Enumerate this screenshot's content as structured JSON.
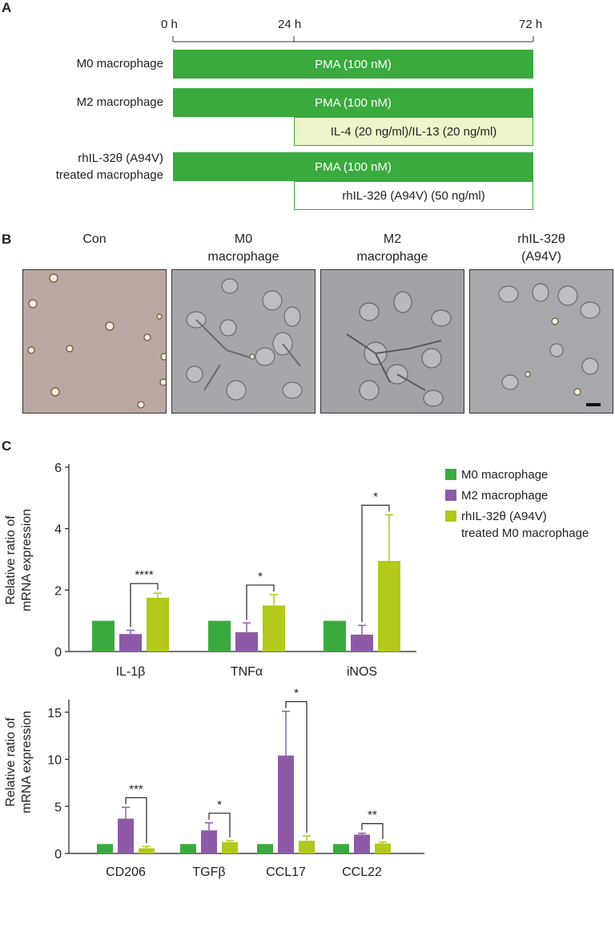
{
  "panels": {
    "a": "A",
    "b": "B",
    "c": "C"
  },
  "timeline": {
    "ticks": [
      "0 h",
      "24 h",
      "72 h"
    ],
    "rows": [
      {
        "label": "M0 macrophage",
        "bars": [
          "PMA (100 nM)"
        ]
      },
      {
        "label": "M2 macrophage",
        "bars": [
          "PMA (100 nM)",
          "IL-4 (20 ng/ml)/IL-13 (20 ng/ml)"
        ]
      },
      {
        "label_line1": "rhIL-32θ (A94V)",
        "label_line2": "treated macrophage",
        "bars": [
          "PMA (100 nM)",
          "rhIL-32θ (A94V) (50 ng/ml)"
        ]
      }
    ]
  },
  "micrographs": [
    {
      "title1": "",
      "title2": "Con"
    },
    {
      "title1": "M0",
      "title2": "macrophage"
    },
    {
      "title1": "M2",
      "title2": "macrophage"
    },
    {
      "title1": "rhIL-32θ",
      "title2": "(A94V)"
    }
  ],
  "colors": {
    "m0": "#3aaa3e",
    "m2": "#8e5aa8",
    "rh": "#b2c81a",
    "pma": "#3aaa3e",
    "il": "#eef5cc"
  },
  "chart_data": [
    {
      "type": "bar",
      "ylabel": "Relative ratio of\nmRNA expression",
      "ylabel_line1": "Relative ratio of",
      "ylabel_line2": "mRNA expression",
      "ylim": [
        0,
        6
      ],
      "yticks": [
        "0",
        "2",
        "4",
        "6"
      ],
      "categories": [
        "IL-1β",
        "TNFα",
        "iNOS"
      ],
      "series": [
        {
          "name": "M0 macrophage",
          "values": [
            1.0,
            1.0,
            1.0
          ],
          "errors": [
            0,
            0,
            0
          ]
        },
        {
          "name": "M2 macrophage",
          "values": [
            0.57,
            0.63,
            0.55
          ],
          "errors": [
            0.12,
            0.3,
            0.3
          ]
        },
        {
          "name": "rhIL-32θ (A94V) treated M0 macrophage",
          "values": [
            1.75,
            1.5,
            2.95
          ],
          "errors": [
            0.15,
            0.35,
            1.5
          ]
        }
      ],
      "significance": [
        "****",
        "*",
        "*"
      ],
      "legend": {
        "items": [
          "M0 macrophage",
          "M2 macrophage"
        ],
        "item3_line1": "rhIL-32θ (A94V)",
        "item3_line2": "treated M0 macrophage",
        "position": "top-right"
      }
    },
    {
      "type": "bar",
      "ylabel": "Relative ratio of\nmRNA expression",
      "ylabel_line1": "Relative ratio of",
      "ylabel_line2": "mRNA expression",
      "ylim": [
        0,
        16
      ],
      "yticks": [
        "0",
        "5",
        "10",
        "15"
      ],
      "categories": [
        "CD206",
        "TGFβ",
        "CCL17",
        "CCL22"
      ],
      "series": [
        {
          "name": "M0 macrophage",
          "values": [
            1.0,
            1.0,
            1.0,
            1.0
          ],
          "errors": [
            0,
            0,
            0,
            0
          ]
        },
        {
          "name": "M2 macrophage",
          "values": [
            3.7,
            2.45,
            10.4,
            2.0
          ],
          "errors": [
            1.2,
            0.8,
            4.7,
            0.15
          ]
        },
        {
          "name": "rhIL-32θ (A94V) treated M0 macrophage",
          "values": [
            0.55,
            1.2,
            1.35,
            1.05
          ],
          "errors": [
            0.2,
            0.15,
            0.5,
            0.15
          ]
        }
      ],
      "significance": [
        "***",
        "*",
        "*",
        "**"
      ]
    }
  ]
}
